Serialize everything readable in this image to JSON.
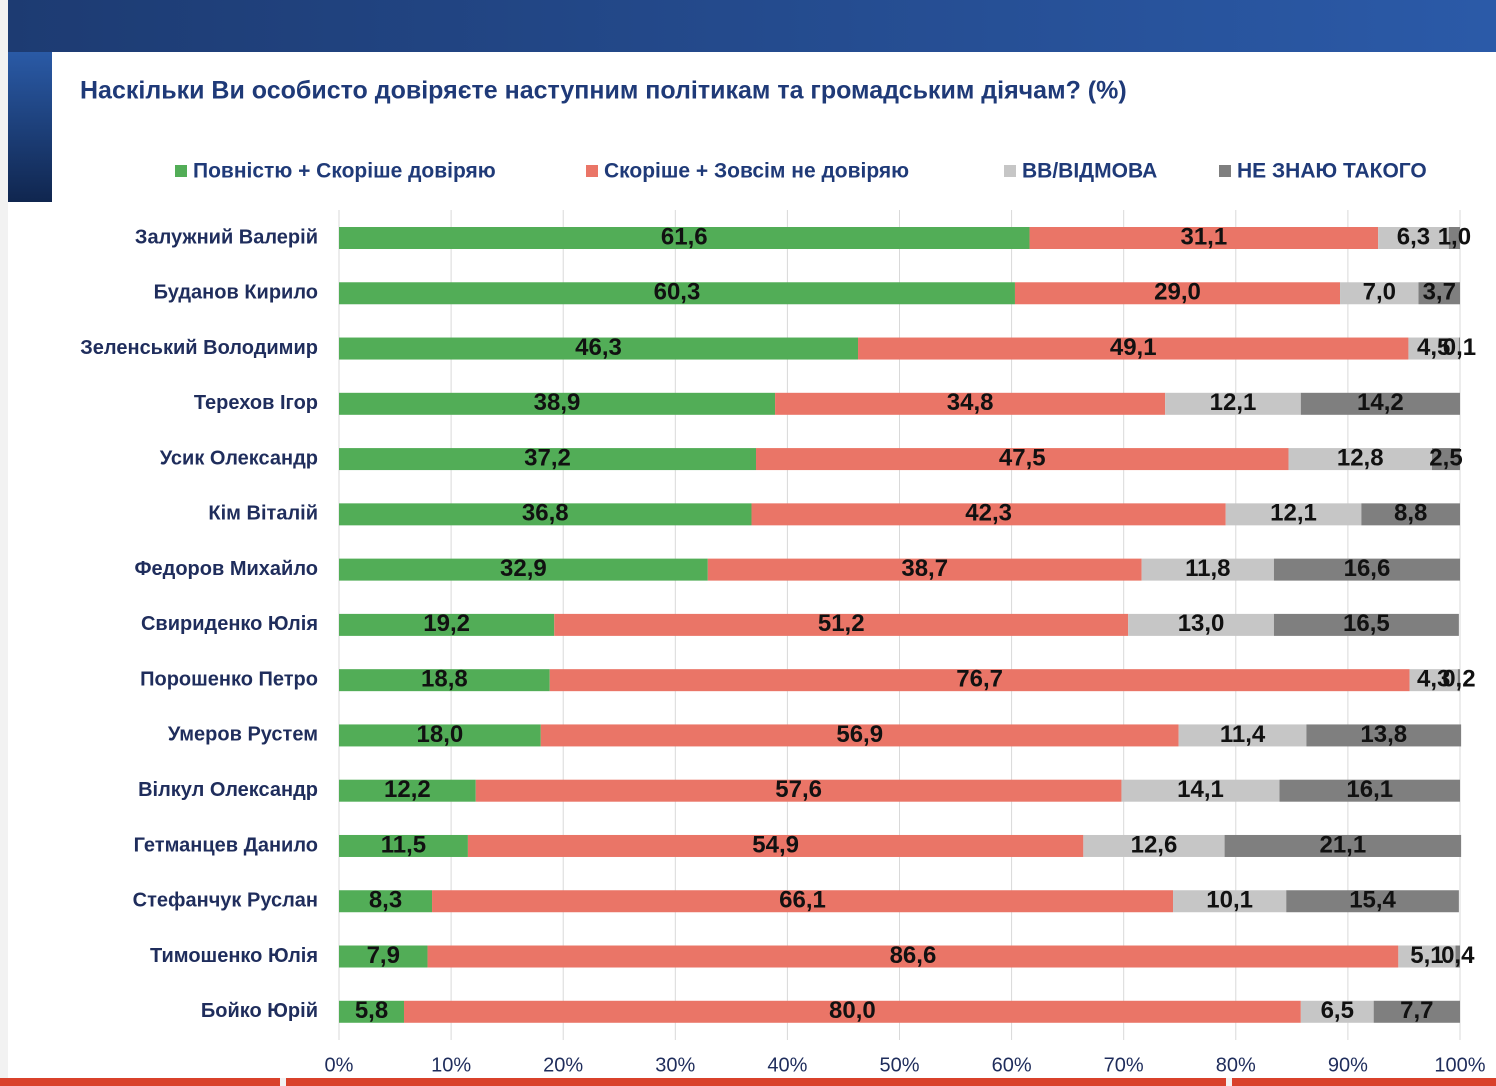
{
  "chart_data": {
    "type": "stacked-bar-horizontal",
    "title": "Наскільки Ви особисто довіряєте наступним політикам та громадським діячам? (%)",
    "categories": [
      "Залужний Валерій",
      "Буданов Кирило",
      "Зеленський Володимир",
      "Терехов Ігор",
      "Усик Олександр",
      "Кім Віталій",
      "Федоров Михайло",
      "Свириденко Юлія",
      "Порошенко Петро",
      "Умеров Рустем",
      "Вілкул Олександр",
      "Гетманцев Данило",
      "Стефанчук Руслан",
      "Тимошенко Юлія",
      "Бойко Юрій"
    ],
    "series": [
      {
        "name": "Повністю + Скоріше довіряю",
        "color": "#52ad57",
        "values": [
          61.6,
          60.3,
          46.3,
          38.9,
          37.2,
          36.8,
          32.9,
          19.2,
          18.8,
          18.0,
          12.2,
          11.5,
          8.3,
          7.9,
          5.8
        ],
        "value_labels": [
          "61,6",
          "60,3",
          "46,3",
          "38,9",
          "37,2",
          "36,8",
          "32,9",
          "19,2",
          "18,8",
          "18,0",
          "12,2",
          "11,5",
          "8,3",
          "7,9",
          "5,8"
        ]
      },
      {
        "name": "Скоріше + Зовсім не довіряю",
        "color": "#ea7567",
        "values": [
          31.1,
          29.0,
          49.1,
          34.8,
          47.5,
          42.3,
          38.7,
          51.2,
          76.7,
          56.9,
          57.6,
          54.9,
          66.1,
          86.6,
          80.0
        ],
        "value_labels": [
          "31,1",
          "29,0",
          "49,1",
          "34,8",
          "47,5",
          "42,3",
          "38,7",
          "51,2",
          "76,7",
          "56,9",
          "57,6",
          "54,9",
          "66,1",
          "86,6",
          "80,0"
        ]
      },
      {
        "name": "ВВ/ВІДМОВА",
        "color": "#c6c6c6",
        "values": [
          6.3,
          7.0,
          4.5,
          12.1,
          12.8,
          12.1,
          11.8,
          13.0,
          4.3,
          11.4,
          14.1,
          12.6,
          10.1,
          5.1,
          6.5
        ],
        "value_labels": [
          "6,3",
          "7,0",
          "4,5",
          "12,1",
          "12,8",
          "12,1",
          "11,8",
          "13,0",
          "4,3",
          "11,4",
          "14,1",
          "12,6",
          "10,1",
          "5,1",
          "6,5"
        ]
      },
      {
        "name": "НЕ ЗНАЮ ТАКОГО",
        "color": "#7f7f7f",
        "values": [
          1.0,
          3.7,
          0.1,
          14.2,
          2.5,
          8.8,
          16.6,
          16.5,
          0.2,
          13.8,
          16.1,
          21.1,
          15.4,
          0.4,
          7.7
        ],
        "value_labels": [
          "1,0",
          "3,7",
          "0,1",
          "14,2",
          "2,5",
          "8,8",
          "16,6",
          "16,5",
          "0,2",
          "13,8",
          "16,1",
          "21,1",
          "15,4",
          "0,4",
          "7,7"
        ]
      }
    ],
    "xlim": [
      0,
      100
    ],
    "xticks": [
      {
        "value": 0,
        "label": "0%"
      },
      {
        "value": 10,
        "label": "10%"
      },
      {
        "value": 20,
        "label": "20%"
      },
      {
        "value": 30,
        "label": "30%"
      },
      {
        "value": 40,
        "label": "40%"
      },
      {
        "value": 50,
        "label": "50%"
      },
      {
        "value": 60,
        "label": "60%"
      },
      {
        "value": 70,
        "label": "70%"
      },
      {
        "value": 80,
        "label": "80%"
      },
      {
        "value": 90,
        "label": "90%"
      },
      {
        "value": 100,
        "label": "100%"
      }
    ],
    "grid": true,
    "legend": "top"
  }
}
